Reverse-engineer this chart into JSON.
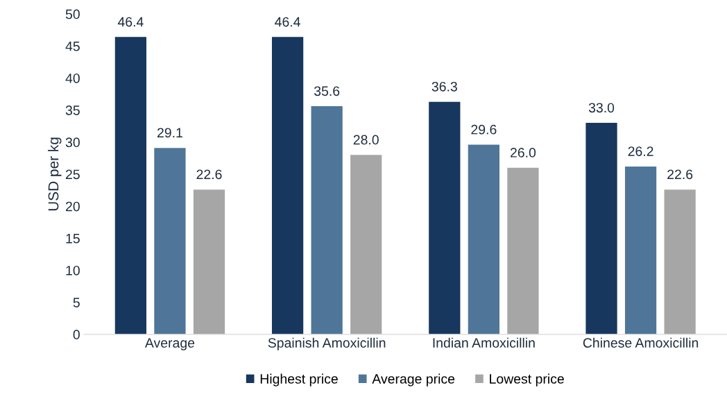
{
  "chart_data": {
    "type": "bar",
    "ylabel": "USD per kg",
    "categories": [
      "Average",
      "Spainish Amoxicillin",
      "Indian Amoxicillin",
      "Chinese Amoxicillin"
    ],
    "series": [
      {
        "name": "Highest price",
        "color": "#17375e",
        "values": [
          46.4,
          46.4,
          36.3,
          33.0
        ],
        "value_labels": [
          "46.4",
          "46.4",
          "36.3",
          "33.0"
        ]
      },
      {
        "name": "Average price",
        "color": "#4f7698",
        "values": [
          29.1,
          35.6,
          29.6,
          26.2
        ],
        "value_labels": [
          "29.1",
          "35.6",
          "29.6",
          "26.2"
        ]
      },
      {
        "name": "Lowest price",
        "color": "#a6a6a6",
        "values": [
          22.6,
          28.0,
          26.0,
          22.6
        ],
        "value_labels": [
          "22.6",
          "28.0",
          "26.0",
          "22.6"
        ]
      }
    ],
    "ylim": [
      0,
      50
    ],
    "yticks": [
      0,
      5,
      10,
      15,
      20,
      25,
      30,
      35,
      40,
      45,
      50
    ],
    "grid": false,
    "legend": "bottom"
  }
}
